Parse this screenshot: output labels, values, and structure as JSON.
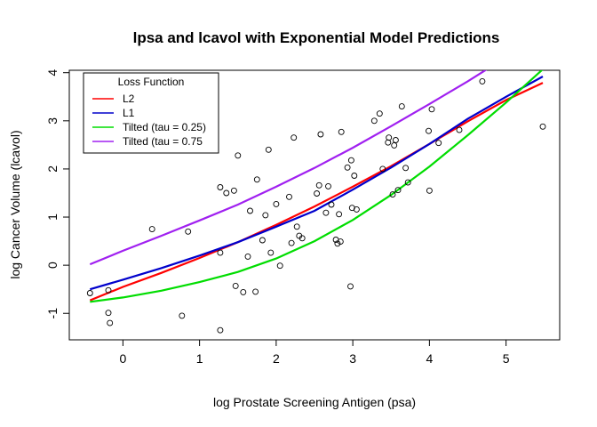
{
  "chart_data": {
    "type": "scatter",
    "title": "lpsa and lcavol with Exponential Model Predictions",
    "xlabel": "log Prostate Screening Antigen (psa)",
    "ylabel": "log Cancer Volume (lcavol)",
    "xlim": [
      -0.7,
      5.7
    ],
    "ylim": [
      -1.55,
      4.05
    ],
    "xticks": [
      0,
      1,
      2,
      3,
      4,
      5
    ],
    "yticks": [
      -1,
      0,
      1,
      2,
      3,
      4
    ],
    "xtick_labels": [
      "0",
      "1",
      "2",
      "3",
      "4",
      "5"
    ],
    "ytick_labels": [
      "-1",
      "0",
      "1",
      "2",
      "3",
      "4"
    ],
    "legend": {
      "title": "Loss Function",
      "placement": "top-left",
      "entries": [
        "L2",
        "L1",
        "Tilted (tau = 0.25)",
        "Tilted (tau = 0.75"
      ]
    },
    "points": [
      [
        -0.43,
        -0.58
      ],
      [
        -0.19,
        -0.52
      ],
      [
        -0.19,
        -0.99
      ],
      [
        -0.17,
        -1.2
      ],
      [
        0.38,
        0.75
      ],
      [
        0.77,
        -1.05
      ],
      [
        0.85,
        0.7
      ],
      [
        1.27,
        -1.35
      ],
      [
        1.27,
        1.62
      ],
      [
        1.27,
        0.26
      ],
      [
        1.35,
        1.5
      ],
      [
        1.45,
        1.55
      ],
      [
        1.47,
        -0.43
      ],
      [
        1.5,
        2.28
      ],
      [
        1.57,
        -0.56
      ],
      [
        1.63,
        0.18
      ],
      [
        1.66,
        1.13
      ],
      [
        1.73,
        -0.55
      ],
      [
        1.75,
        1.78
      ],
      [
        1.82,
        0.52
      ],
      [
        1.86,
        1.04
      ],
      [
        1.9,
        2.4
      ],
      [
        1.93,
        0.26
      ],
      [
        2.0,
        1.27
      ],
      [
        2.05,
        -0.01
      ],
      [
        2.17,
        1.42
      ],
      [
        2.2,
        0.46
      ],
      [
        2.23,
        2.65
      ],
      [
        2.27,
        0.8
      ],
      [
        2.3,
        0.61
      ],
      [
        2.34,
        0.56
      ],
      [
        2.53,
        1.49
      ],
      [
        2.56,
        1.66
      ],
      [
        2.58,
        2.72
      ],
      [
        2.65,
        1.09
      ],
      [
        2.68,
        1.64
      ],
      [
        2.72,
        1.26
      ],
      [
        2.78,
        0.53
      ],
      [
        2.8,
        0.45
      ],
      [
        2.82,
        1.06
      ],
      [
        2.84,
        0.49
      ],
      [
        2.85,
        2.77
      ],
      [
        2.93,
        2.03
      ],
      [
        2.97,
        -0.44
      ],
      [
        2.98,
        2.18
      ],
      [
        2.99,
        1.19
      ],
      [
        3.02,
        1.86
      ],
      [
        3.05,
        1.16
      ],
      [
        3.28,
        3.0
      ],
      [
        3.35,
        3.15
      ],
      [
        3.39,
        2.0
      ],
      [
        3.46,
        2.55
      ],
      [
        3.47,
        2.65
      ],
      [
        3.52,
        1.47
      ],
      [
        3.54,
        2.49
      ],
      [
        3.56,
        2.6
      ],
      [
        3.59,
        1.56
      ],
      [
        3.64,
        3.3
      ],
      [
        3.69,
        2.02
      ],
      [
        3.72,
        1.72
      ],
      [
        3.99,
        2.79
      ],
      [
        4.0,
        1.55
      ],
      [
        4.03,
        3.24
      ],
      [
        4.12,
        2.54
      ],
      [
        4.39,
        2.81
      ],
      [
        4.69,
        3.82
      ],
      [
        5.48,
        2.88
      ]
    ],
    "series": [
      {
        "name": "L2",
        "color": "#ff0000",
        "x": [
          -0.43,
          0.0,
          0.5,
          1.0,
          1.5,
          2.0,
          2.5,
          3.0,
          3.5,
          4.0,
          4.5,
          5.0,
          5.48
        ],
        "values": [
          -0.73,
          -0.45,
          -0.16,
          0.15,
          0.48,
          0.84,
          1.22,
          1.63,
          2.06,
          2.52,
          2.99,
          3.43,
          3.79
        ]
      },
      {
        "name": "L1",
        "color": "#0000cc",
        "x": [
          -0.43,
          0.0,
          0.5,
          1.0,
          1.5,
          2.0,
          2.5,
          3.0,
          3.5,
          4.0,
          4.5,
          5.0,
          5.48
        ],
        "values": [
          -0.5,
          -0.3,
          -0.06,
          0.2,
          0.48,
          0.8,
          1.13,
          1.57,
          2.03,
          2.52,
          3.04,
          3.5,
          3.92
        ]
      },
      {
        "name": "Tilted (tau = 0.25)",
        "color": "#00dd00",
        "x": [
          -0.43,
          0.0,
          0.5,
          1.0,
          1.5,
          2.0,
          2.5,
          3.0,
          3.5,
          4.0,
          4.5,
          5.0,
          5.48
        ],
        "values": [
          -0.76,
          -0.67,
          -0.53,
          -0.35,
          -0.14,
          0.14,
          0.5,
          0.94,
          1.46,
          2.05,
          2.7,
          3.38,
          4.07
        ]
      },
      {
        "name": "Tilted (tau = 0.75",
        "color": "#a020f0",
        "x": [
          -0.43,
          0.0,
          0.5,
          1.0,
          1.5,
          2.0,
          2.5,
          3.0,
          3.5,
          4.0,
          4.5,
          5.0
        ],
        "values": [
          0.02,
          0.3,
          0.61,
          0.93,
          1.26,
          1.63,
          2.02,
          2.44,
          2.89,
          3.35,
          3.82,
          4.32
        ]
      }
    ]
  }
}
